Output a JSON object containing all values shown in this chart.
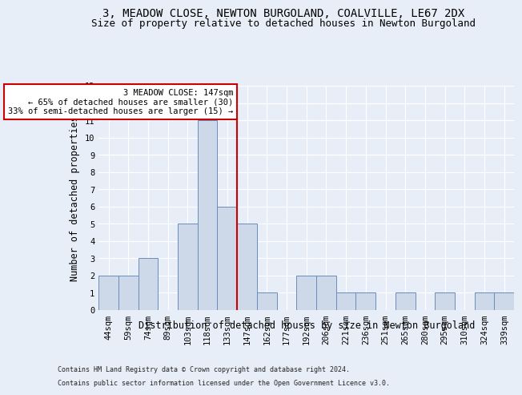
{
  "title1": "3, MEADOW CLOSE, NEWTON BURGOLAND, COALVILLE, LE67 2DX",
  "title2": "Size of property relative to detached houses in Newton Burgoland",
  "xlabel": "Distribution of detached houses by size in Newton Burgoland",
  "ylabel": "Number of detached properties",
  "footer1": "Contains HM Land Registry data © Crown copyright and database right 2024.",
  "footer2": "Contains public sector information licensed under the Open Government Licence v3.0.",
  "categories": [
    "44sqm",
    "59sqm",
    "74sqm",
    "89sqm",
    "103sqm",
    "118sqm",
    "133sqm",
    "147sqm",
    "162sqm",
    "177sqm",
    "192sqm",
    "206sqm",
    "221sqm",
    "236sqm",
    "251sqm",
    "265sqm",
    "280sqm",
    "295sqm",
    "310sqm",
    "324sqm",
    "339sqm"
  ],
  "values": [
    2,
    2,
    3,
    0,
    5,
    11,
    6,
    5,
    1,
    0,
    2,
    2,
    1,
    1,
    0,
    1,
    0,
    1,
    0,
    1,
    1
  ],
  "bar_color": "#cdd8e8",
  "bar_edge_color": "#6b8cba",
  "vline_index": 7,
  "highlight_label": "3 MEADOW CLOSE: 147sqm",
  "annotation_line1": "← 65% of detached houses are smaller (30)",
  "annotation_line2": "33% of semi-detached houses are larger (15) →",
  "ylim": [
    0,
    13
  ],
  "yticks": [
    0,
    1,
    2,
    3,
    4,
    5,
    6,
    7,
    8,
    9,
    10,
    11,
    12,
    13
  ],
  "bg_color": "#e8eef8",
  "plot_bg": "#e8eef8",
  "grid_color": "white",
  "vline_color": "#cc0000",
  "annotation_box_edge": "#cc0000",
  "title1_fontsize": 10,
  "title2_fontsize": 9,
  "tick_fontsize": 7.5,
  "ylabel_fontsize": 8.5,
  "xlabel_fontsize": 8.5,
  "footer_fontsize": 6,
  "annot_fontsize": 7.5
}
